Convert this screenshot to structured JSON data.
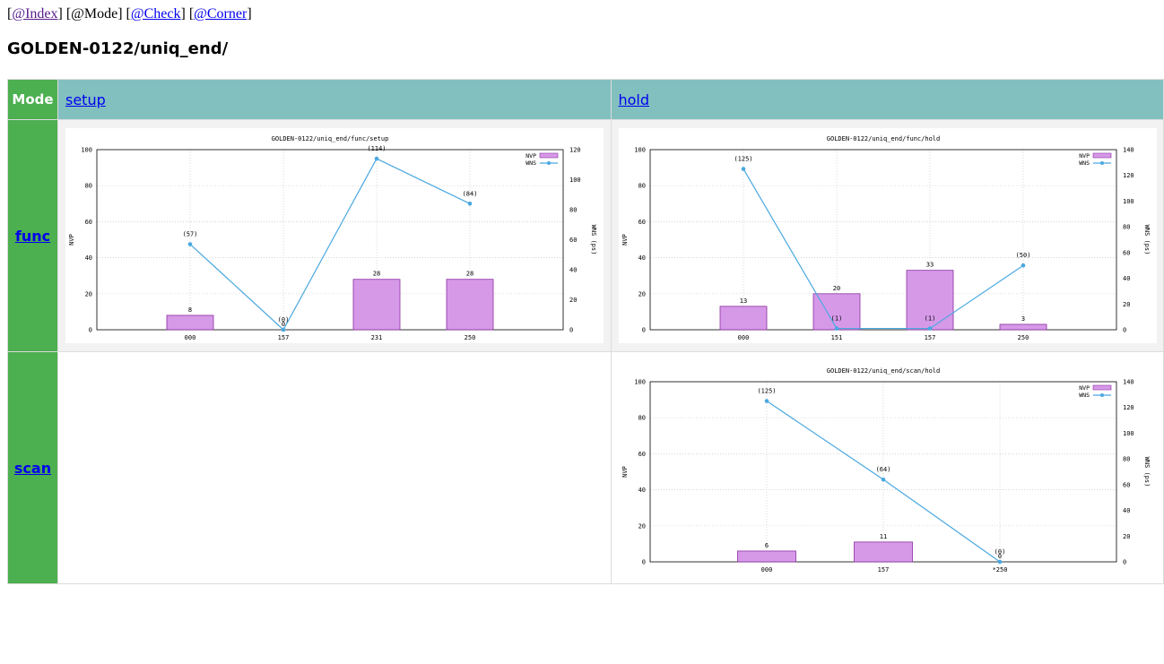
{
  "nav": {
    "open1": "[",
    "index": "@Index",
    "close1": "]",
    "mode_text": "[@Mode]",
    "open3": "[",
    "check": "@Check",
    "close3": "]",
    "open4": "[",
    "corner": "@Corner",
    "close4": "]"
  },
  "page_title": "GOLDEN-0122/uniq_end/",
  "table": {
    "mode_header": "Mode",
    "columns": [
      "setup",
      "hold"
    ],
    "rows": [
      "func",
      "scan"
    ]
  },
  "colors": {
    "bar": "#d699e8",
    "bar_stroke": "#8a2fa0",
    "line": "#4aa8e0",
    "mode_green": "#4caf50",
    "header_teal": "#82c0c0"
  },
  "chart_data": [
    {
      "type": "bar+line",
      "title": "GOLDEN-0122/uniq_end/func/setup",
      "categories": [
        "000",
        "157",
        "231",
        "250"
      ],
      "series": [
        {
          "name": "NVP",
          "values": [
            8,
            0,
            28,
            28
          ],
          "labels": [
            "8",
            "0",
            "28",
            "28"
          ]
        },
        {
          "name": "WNS",
          "values": [
            57,
            0,
            114,
            84
          ],
          "labels": [
            "(57)",
            "(0)",
            "(114)",
            "(84)"
          ]
        }
      ],
      "ylabel": "NVP",
      "y2label": "WNS (ps)",
      "ylim": [
        0,
        100
      ],
      "yticks": [
        0,
        20,
        40,
        60,
        80,
        100
      ],
      "y2lim": [
        0,
        120
      ],
      "y2ticks": [
        0,
        20,
        40,
        60,
        80,
        100,
        120
      ],
      "legend": "top-right",
      "grid": true
    },
    {
      "type": "bar+line",
      "title": "GOLDEN-0122/uniq_end/func/hold",
      "categories": [
        "000",
        "151",
        "157",
        "250"
      ],
      "series": [
        {
          "name": "NVP",
          "values": [
            13,
            20,
            33,
            3
          ],
          "labels": [
            "13",
            "20",
            "33",
            "3"
          ]
        },
        {
          "name": "WNS",
          "values": [
            125,
            1,
            1,
            50
          ],
          "labels": [
            "(125)",
            "(1)",
            "(1)",
            "(50)"
          ]
        }
      ],
      "ylabel": "NVP",
      "y2label": "WNS (ps)",
      "ylim": [
        0,
        100
      ],
      "yticks": [
        0,
        20,
        40,
        60,
        80,
        100
      ],
      "y2lim": [
        0,
        140
      ],
      "y2ticks": [
        0,
        20,
        40,
        60,
        80,
        100,
        120,
        140
      ],
      "legend": "top-right",
      "grid": true
    },
    {
      "type": "bar+line",
      "title": "GOLDEN-0122/uniq_end/scan/hold",
      "categories": [
        "000",
        "157",
        "*250"
      ],
      "series": [
        {
          "name": "NVP",
          "values": [
            6,
            11,
            0
          ],
          "labels": [
            "6",
            "11",
            "0"
          ]
        },
        {
          "name": "WNS",
          "values": [
            125,
            64,
            0
          ],
          "labels": [
            "(125)",
            "(64)",
            "(0)"
          ]
        }
      ],
      "ylabel": "NVP",
      "y2label": "WNS (ps)",
      "ylim": [
        0,
        100
      ],
      "yticks": [
        0,
        20,
        40,
        60,
        80,
        100
      ],
      "y2lim": [
        0,
        140
      ],
      "y2ticks": [
        0,
        20,
        40,
        60,
        80,
        100,
        120,
        140
      ],
      "legend": "top-right",
      "grid": true
    }
  ]
}
